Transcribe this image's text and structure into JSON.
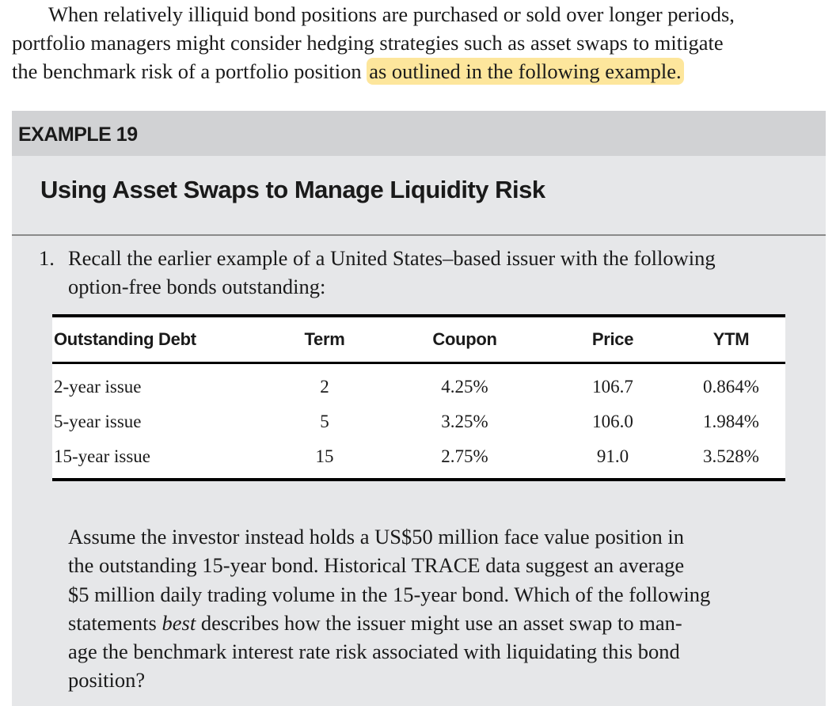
{
  "intro": {
    "lines": [
      "When relatively illiquid bond positions are purchased or sold over longer periods,",
      "portfolio managers might consider hedging strategies such as asset swaps to mitigate",
      "the benchmark risk of a portfolio position"
    ],
    "highlighted": "as outlined in the following example.",
    "highlight_color": "#fde69c"
  },
  "example": {
    "label": "EXAMPLE 19",
    "title": "Using Asset Swaps to Manage Liquidity Risk",
    "question_number": "1.",
    "question_lines": [
      "Recall the earlier example of a United States–based issuer with the following",
      "option-free bonds outstanding:"
    ],
    "table": {
      "headers": [
        "Outstanding Debt",
        "Term",
        "Coupon",
        "Price",
        "YTM"
      ],
      "rows": [
        [
          "2-year issue",
          "2",
          "4.25%",
          "106.7",
          "0.864%"
        ],
        [
          "5-year issue",
          "5",
          "3.25%",
          "106.0",
          "1.984%"
        ],
        [
          "15-year issue",
          "15",
          "2.75%",
          "91.0",
          "3.528%"
        ]
      ]
    },
    "paragraph": {
      "line1": "Assume the investor instead holds a US$50 million face value position in",
      "line2": "the outstanding 15-year bond. Historical TRACE data suggest an average",
      "line3": "$5 million daily trading volume in the 15-year bond. Which of the following",
      "line4_pre": "statements ",
      "line4_em": "best",
      "line4_post": " describes how the issuer might use an asset swap to man-",
      "line5": "age the benchmark interest rate risk associated with liquidating this bond",
      "line6": "position?"
    }
  }
}
